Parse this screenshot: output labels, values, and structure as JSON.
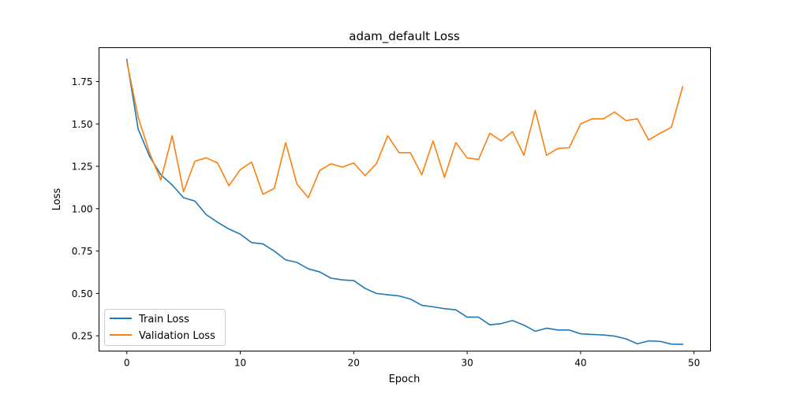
{
  "chart_data": {
    "type": "line",
    "title": "adam_default Loss",
    "xlabel": "Epoch",
    "ylabel": "Loss",
    "xlim": [
      -2.45,
      51.45
    ],
    "ylim": [
      0.16,
      1.95
    ],
    "x_ticks": [
      0,
      10,
      20,
      30,
      40,
      50
    ],
    "y_ticks": [
      0.25,
      0.5,
      0.75,
      1.0,
      1.25,
      1.5,
      1.75
    ],
    "y_tick_labels": [
      "0.25",
      "0.50",
      "0.75",
      "1.00",
      "1.25",
      "1.50",
      "1.75"
    ],
    "grid": false,
    "legend_position": "lower-left",
    "x": [
      0,
      1,
      2,
      3,
      4,
      5,
      6,
      7,
      8,
      9,
      10,
      11,
      12,
      13,
      14,
      15,
      16,
      17,
      18,
      19,
      20,
      21,
      22,
      23,
      24,
      25,
      26,
      27,
      28,
      29,
      30,
      31,
      32,
      33,
      34,
      35,
      36,
      37,
      38,
      39,
      40,
      41,
      42,
      43,
      44,
      45,
      46,
      47,
      48,
      49
    ],
    "series": [
      {
        "name": "Train Loss",
        "color": "#1f77b4",
        "values": [
          1.88,
          1.47,
          1.31,
          1.2,
          1.14,
          1.065,
          1.045,
          0.965,
          0.92,
          0.88,
          0.85,
          0.8,
          0.792,
          0.75,
          0.698,
          0.683,
          0.645,
          0.627,
          0.59,
          0.58,
          0.576,
          0.53,
          0.5,
          0.492,
          0.485,
          0.467,
          0.43,
          0.421,
          0.41,
          0.403,
          0.36,
          0.36,
          0.315,
          0.322,
          0.34,
          0.313,
          0.277,
          0.295,
          0.284,
          0.284,
          0.262,
          0.258,
          0.255,
          0.248,
          0.232,
          0.203,
          0.22,
          0.217,
          0.201,
          0.2
        ]
      },
      {
        "name": "Validation Loss",
        "color": "#ff7f0e",
        "values": [
          1.87,
          1.54,
          1.33,
          1.17,
          1.43,
          1.1,
          1.28,
          1.3,
          1.27,
          1.135,
          1.23,
          1.275,
          1.085,
          1.12,
          1.39,
          1.145,
          1.065,
          1.225,
          1.265,
          1.245,
          1.27,
          1.195,
          1.265,
          1.43,
          1.33,
          1.33,
          1.2,
          1.4,
          1.185,
          1.39,
          1.3,
          1.29,
          1.445,
          1.4,
          1.455,
          1.315,
          1.58,
          1.315,
          1.355,
          1.36,
          1.5,
          1.53,
          1.53,
          1.57,
          1.52,
          1.53,
          1.405,
          1.445,
          1.48,
          1.72
        ]
      }
    ]
  }
}
